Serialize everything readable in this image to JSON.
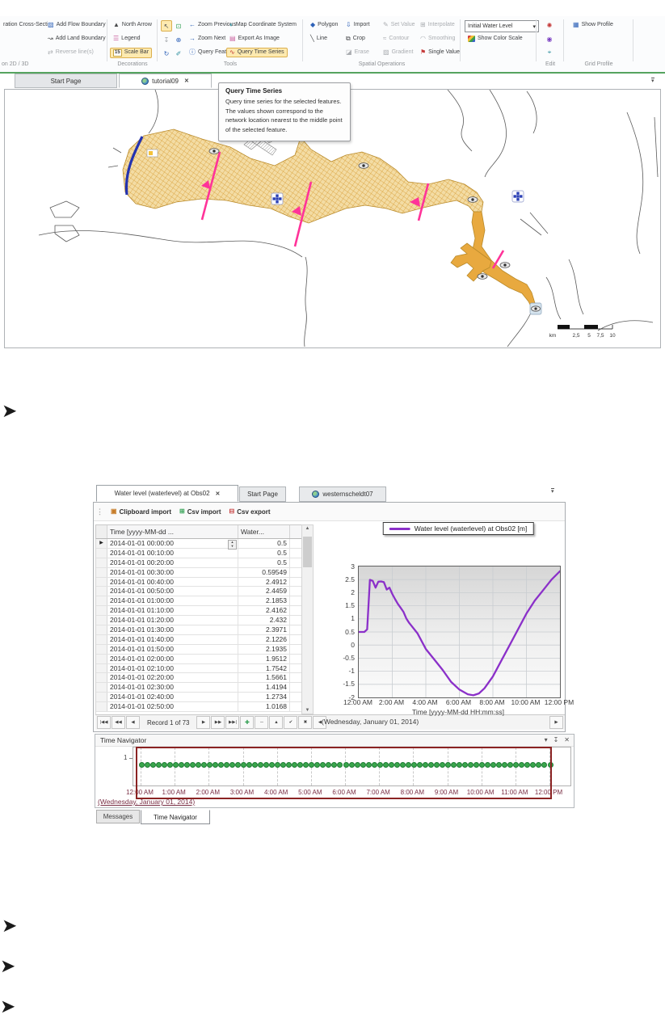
{
  "page": {
    "bullet_glyph": "➤"
  },
  "colors": {
    "ribbon_highlight": "#FDEAB0",
    "ribbon_green_line": "#55A45F",
    "mesh_fill": "#F3DCA4",
    "mesh_grid": "#D6992E",
    "channel_fill": "#E8A93F",
    "flow_boundary_blue": "#2433B0",
    "cross_section_pink": "#FF3399",
    "chart_line_purple": "#8B30C9",
    "navigator_dot_green": "#3AA64C",
    "navigator_frame_maroon": "#8B2323",
    "navigator_label_maroon": "#7A2F45"
  },
  "icons": {
    "add_flow_boundary": "▧",
    "add_land_boundary": "↝",
    "reverse_lines": "⇄",
    "north_arrow": "▲",
    "legend": "☰",
    "scale_bar_badge": "15",
    "pointer": "↖",
    "expand": "⊡",
    "pin_tool": "↧",
    "zoom_in": "⊕",
    "refresh": "↻",
    "measure": "✐",
    "arrow_left": "←",
    "arrow_right": "→",
    "info": "ⓘ",
    "map_coordinate": "◐",
    "export_image": "▤",
    "time_series": "∿",
    "polygon": "◆",
    "line": "╲",
    "import": "⇩",
    "crop": "⧉",
    "erase": "◪",
    "set_value": "✎",
    "contour": "≈",
    "gradient": "▨",
    "interpolate": "⊞",
    "smoothing": "◠",
    "single_value": "⚑",
    "edit_1": "✺",
    "edit_2": "◉",
    "edit_3": "⌖",
    "show_profile": "▦",
    "dropdown_caret": "▾",
    "close": "✕",
    "dock_caret": "▾",
    "clipboard": "▣",
    "csv_import": "⊞",
    "csv_export": "⊟",
    "grip": "⋮",
    "title_caret": "▾",
    "title_pin": "↧",
    "title_close": "✕",
    "scroll_up": "▲",
    "scroll_down": "▼",
    "row_marker": "▶"
  },
  "ribbon": {
    "region_group": {
      "label": "on 2D / 3D",
      "cross_section": "ration Cross-Section",
      "add_flow_boundary": "Add Flow Boundary",
      "add_land_boundary": "Add Land Boundary",
      "reverse_lines": "Reverse line(s)"
    },
    "decorations_group": {
      "label": "Decorations",
      "north_arrow": "North Arrow",
      "legend": "Legend",
      "scale_bar": "Scale Bar"
    },
    "tools_group": {
      "label": "Tools",
      "zoom_previous": "Zoom Previous",
      "zoom_next": "Zoom Next",
      "query_features": "Query Features",
      "map_coordinate_system": "Map Coordinate System",
      "export_as_image": "Export As Image",
      "query_time_series": "Query Time Series"
    },
    "spatial_group": {
      "label": "Spatial Operations",
      "polygon": "Polygon",
      "line": "Line",
      "import": "Import",
      "crop": "Crop",
      "erase": "Erase",
      "set_value": "Set Value",
      "contour": "Contour",
      "gradient": "Gradient",
      "interpolate": "Interpolate",
      "smoothing": "Smoothing",
      "single_value": "Single Value"
    },
    "initial_group": {
      "dropdown_value": "Initial Water Level",
      "show_color_scale": "Show Color Scale"
    },
    "edit_group": {
      "label": "Edit"
    },
    "grid_profile_group": {
      "label": "Grid Profile",
      "show_profile": "Show Profile"
    }
  },
  "map_view": {
    "tabs": {
      "start_page": "Start Page",
      "active_tab": "tutorial09"
    },
    "tooltip": {
      "title": "Query Time Series",
      "body": "Query time series for the selected features. The values shown correspond to the network location nearest to the middle point of the selected feature."
    },
    "scale_bar": {
      "unit": "km",
      "labels": [
        "2,5",
        "5",
        "7,5",
        "10"
      ]
    }
  },
  "ts_editor": {
    "tabs": {
      "active_tab": "Water level (waterlevel) at Obs02",
      "start_page": "Start Page",
      "project_tab": "westernscheldt07"
    },
    "toolbar": {
      "clipboard_import": "Clipboard import",
      "csv_import": "Csv import",
      "csv_export": "Csv export"
    },
    "table": {
      "columns": [
        "Time [yyyy-MM-dd ...",
        "Water..."
      ],
      "rows": [
        [
          "2014-01-01 00:00:00",
          "0.5"
        ],
        [
          "2014-01-01 00:10:00",
          "0.5"
        ],
        [
          "2014-01-01 00:20:00",
          "0.5"
        ],
        [
          "2014-01-01 00:30:00",
          "0.59549"
        ],
        [
          "2014-01-01 00:40:00",
          "2.4912"
        ],
        [
          "2014-01-01 00:50:00",
          "2.4459"
        ],
        [
          "2014-01-01 01:00:00",
          "2.1853"
        ],
        [
          "2014-01-01 01:10:00",
          "2.4162"
        ],
        [
          "2014-01-01 01:20:00",
          "2.432"
        ],
        [
          "2014-01-01 01:30:00",
          "2.3971"
        ],
        [
          "2014-01-01 01:40:00",
          "2.1226"
        ],
        [
          "2014-01-01 01:50:00",
          "2.1935"
        ],
        [
          "2014-01-01 02:00:00",
          "1.9512"
        ],
        [
          "2014-01-01 02:10:00",
          "1.7542"
        ],
        [
          "2014-01-01 02:20:00",
          "1.5661"
        ],
        [
          "2014-01-01 02:30:00",
          "1.4194"
        ],
        [
          "2014-01-01 02:40:00",
          "1.2734"
        ],
        [
          "2014-01-01 02:50:00",
          "1.0168"
        ]
      ]
    },
    "record_bar": {
      "status": "Record 1 of 73",
      "left_buttons": [
        "|◀◀",
        "◀◀",
        "◀"
      ],
      "right_buttons": [
        "▶",
        "▶▶",
        "▶▶|"
      ],
      "edit_buttons": [
        "✚",
        "─",
        "▲",
        "✔",
        "✖",
        "◀"
      ],
      "far_right": "▶"
    }
  },
  "chart_data": {
    "type": "line",
    "legend": "Water level (waterlevel) at Obs02 [m]",
    "xlabel": "Time [yyyy-MM-dd HH:mm:ss]",
    "x_sublabel": "(Wednesday, January 01, 2014)",
    "x_tick_labels": [
      "12:00 AM",
      "2:00 AM",
      "4:00 AM",
      "6:00 AM",
      "8:00 AM",
      "10:00 AM",
      "12:00 PM"
    ],
    "y_ticks": [
      "3",
      "2.5",
      "2",
      "1.5",
      "1",
      "0.5",
      "0",
      "-0.5",
      "-1",
      "-1.5",
      "-2"
    ],
    "ylim": [
      -2,
      3
    ],
    "xlim_minutes": [
      0,
      720
    ],
    "line_color": "#8b30c9",
    "grid": true,
    "legend_position": "top",
    "series": [
      {
        "name": "Water level (waterlevel) at Obs02 [m]",
        "points_minutes_value": [
          [
            0,
            0.5
          ],
          [
            10,
            0.5
          ],
          [
            20,
            0.5
          ],
          [
            30,
            0.6
          ],
          [
            40,
            2.49
          ],
          [
            50,
            2.45
          ],
          [
            60,
            2.19
          ],
          [
            70,
            2.42
          ],
          [
            80,
            2.43
          ],
          [
            90,
            2.4
          ],
          [
            100,
            2.12
          ],
          [
            110,
            2.19
          ],
          [
            120,
            1.95
          ],
          [
            130,
            1.75
          ],
          [
            140,
            1.57
          ],
          [
            150,
            1.42
          ],
          [
            160,
            1.27
          ],
          [
            170,
            1.02
          ],
          [
            180,
            0.85
          ],
          [
            210,
            0.45
          ],
          [
            240,
            -0.15
          ],
          [
            270,
            -0.55
          ],
          [
            300,
            -0.95
          ],
          [
            330,
            -1.4
          ],
          [
            360,
            -1.7
          ],
          [
            390,
            -1.88
          ],
          [
            410,
            -1.92
          ],
          [
            430,
            -1.85
          ],
          [
            450,
            -1.65
          ],
          [
            480,
            -1.2
          ],
          [
            510,
            -0.6
          ],
          [
            540,
            0.0
          ],
          [
            570,
            0.6
          ],
          [
            600,
            1.2
          ],
          [
            630,
            1.7
          ],
          [
            660,
            2.1
          ],
          [
            690,
            2.5
          ],
          [
            720,
            2.82
          ]
        ]
      }
    ]
  },
  "time_navigator": {
    "title": "Time Navigator",
    "row_label": "1",
    "dot_count": 73,
    "x_tick_labels": [
      "12:00 AM",
      "1:00 AM",
      "2:00 AM",
      "3:00 AM",
      "4:00 AM",
      "5:00 AM",
      "6:00 AM",
      "7:00 AM",
      "8:00 AM",
      "9:00 AM",
      "10:00 AM",
      "11:00 AM",
      "12:00 PM"
    ],
    "date_label": "(Wednesday, January 01, 2014)"
  },
  "bottom_tabs": {
    "messages": "Messages",
    "time_navigator": "Time Navigator"
  }
}
